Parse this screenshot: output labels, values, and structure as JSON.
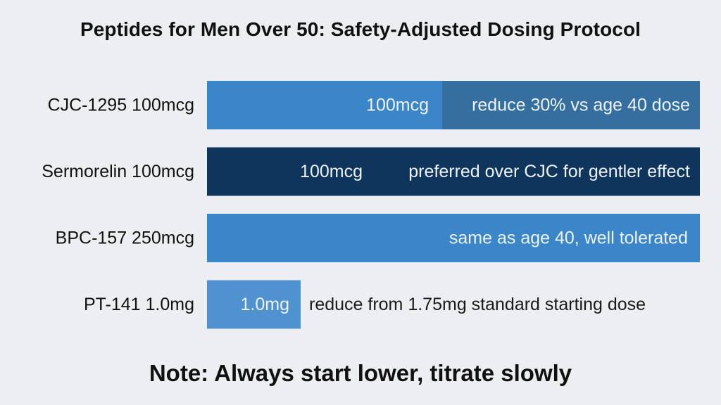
{
  "chart_data": {
    "type": "bar",
    "title": "Peptides for Men Over 50: Safety-Adjusted Dosing Protocol",
    "xlabel": "",
    "ylabel": "",
    "categories": [
      "CJC-1295 100mcg",
      "Sermorelin 100mcg",
      "BPC-157 250mcg",
      "PT-141 1.0mg"
    ],
    "bars": [
      {
        "label": "CJC-1295 100mcg",
        "value_label": "100mcg",
        "annotation": "reduce 30% vs age 40 dose",
        "color": "#3a86c8",
        "overlay_color": "#346f9f",
        "fill": 1.0
      },
      {
        "label": "Sermorelin 100mcg",
        "value_label": "100mcg",
        "annotation": "preferred over CJC for gentler effect",
        "color": "#0f355c",
        "fill": 1.0
      },
      {
        "label": "BPC-157 250mcg",
        "value_label": "",
        "annotation": "same as age 40, well tolerated",
        "color": "#3a86c8",
        "fill": 1.0
      },
      {
        "label": "PT-141 1.0mg",
        "value_label": "1.0mg",
        "annotation": "reduce from 1.75mg standard starting dose",
        "color": "#4f92cf",
        "fill": 0.19
      }
    ],
    "note": "Note: Always start lower, titrate slowly"
  }
}
